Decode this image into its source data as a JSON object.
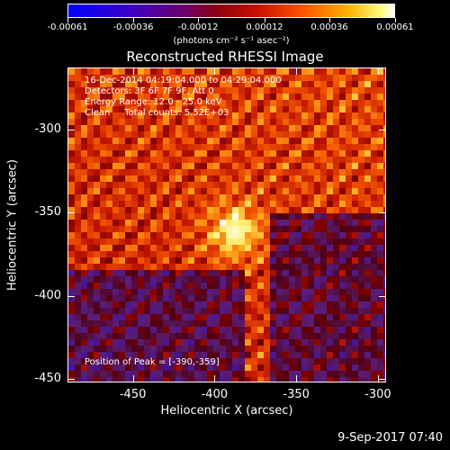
{
  "colorbar": {
    "tick_labels": [
      "-0.00061",
      "-0.00036",
      "-0.00012",
      "0.00012",
      "0.00036",
      "0.00061"
    ],
    "units_label": "(photons cm⁻² s⁻¹ asec⁻²)"
  },
  "chart_data": {
    "type": "heatmap",
    "title": "Reconstructed RHESSI Image",
    "xlabel": "Heliocentric X (arcsec)",
    "ylabel": "Heliocentric Y (arcsec)",
    "xlim": [
      -490,
      -295
    ],
    "ylim": [
      -452,
      -263
    ],
    "x_ticks": [
      "-450",
      "-400",
      "-350",
      "-300"
    ],
    "y_ticks": [
      "-300",
      "-350",
      "-400",
      "-450"
    ],
    "colorbar_range": [
      -0.00061,
      0.00061
    ],
    "peak": {
      "x": -390,
      "y": -359
    },
    "annotations": {
      "time": "16-Dec-2014 04:19:04.000 to 04:29:04.000",
      "detectors": "Detectors: 3F 6F 7F 9F, Att 0",
      "energy": "Energy Range: 12.0 - 25.0 keV",
      "clean": "Clean     Total counts: 5.52E+03",
      "peak_text": "Position of Peak = [-390,-359]"
    }
  },
  "footer": {
    "date": "9-Sep-2017 07:40"
  }
}
